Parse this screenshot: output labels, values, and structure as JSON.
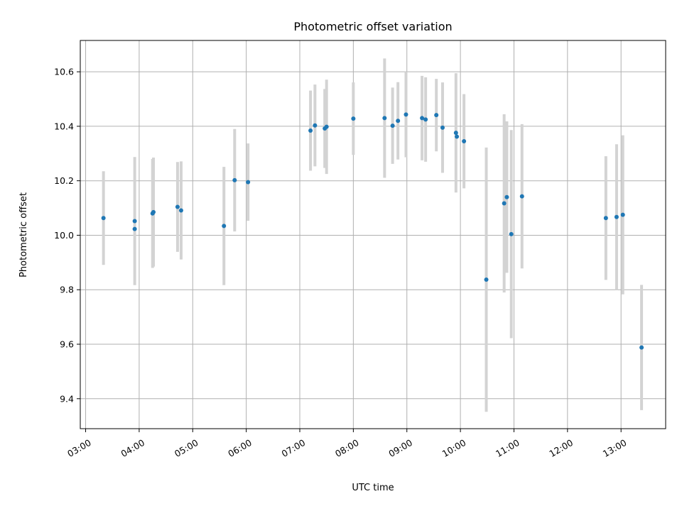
{
  "chart_data": {
    "type": "scatter",
    "title": "Photometric offset variation",
    "xlabel": "UTC time",
    "ylabel": "Photometric offset",
    "x_range": [
      "02:54",
      "13:50"
    ],
    "ylim": [
      9.29,
      10.715
    ],
    "x_ticks": [
      "03:00",
      "04:00",
      "05:00",
      "06:00",
      "07:00",
      "08:00",
      "09:00",
      "10:00",
      "11:00",
      "12:00",
      "13:00"
    ],
    "y_ticks": [
      9.4,
      9.6,
      9.8,
      10.0,
      10.2,
      10.4,
      10.6
    ],
    "y_tick_labels": [
      "9.4",
      "9.6",
      "9.8",
      "10.0",
      "10.2",
      "10.4",
      "10.6"
    ],
    "grid": true,
    "marker_color": "#1f77b4",
    "errorbar_color": "#d3d3d3",
    "points": [
      {
        "x": "03:20",
        "y": 10.063,
        "err": 0.172
      },
      {
        "x": "03:55",
        "y": 10.052,
        "err": 0.235
      },
      {
        "x": "03:55",
        "y": 10.023,
        "err": 0.0
      },
      {
        "x": "04:15",
        "y": 10.08,
        "err": 0.2
      },
      {
        "x": "04:16",
        "y": 10.085,
        "err": 0.2
      },
      {
        "x": "04:43",
        "y": 10.104,
        "err": 0.165
      },
      {
        "x": "04:47",
        "y": 10.091,
        "err": 0.18
      },
      {
        "x": "05:35",
        "y": 10.034,
        "err": 0.217
      },
      {
        "x": "05:47",
        "y": 10.202,
        "err": 0.188
      },
      {
        "x": "06:02",
        "y": 10.195,
        "err": 0.142
      },
      {
        "x": "07:12",
        "y": 10.384,
        "err": 0.147
      },
      {
        "x": "07:17",
        "y": 10.403,
        "err": 0.15
      },
      {
        "x": "07:28",
        "y": 10.392,
        "err": 0.145
      },
      {
        "x": "07:30",
        "y": 10.398,
        "err": 0.173
      },
      {
        "x": "08:00",
        "y": 10.428,
        "err": 0.133
      },
      {
        "x": "08:35",
        "y": 10.43,
        "err": 0.219
      },
      {
        "x": "08:44",
        "y": 10.402,
        "err": 0.14
      },
      {
        "x": "08:50",
        "y": 10.42,
        "err": 0.142
      },
      {
        "x": "08:59",
        "y": 10.443,
        "err": 0.157
      },
      {
        "x": "09:17",
        "y": 10.43,
        "err": 0.155
      },
      {
        "x": "09:21",
        "y": 10.425,
        "err": 0.155
      },
      {
        "x": "09:33",
        "y": 10.441,
        "err": 0.133
      },
      {
        "x": "09:40",
        "y": 10.395,
        "err": 0.166
      },
      {
        "x": "09:55",
        "y": 10.376,
        "err": 0.219
      },
      {
        "x": "09:56",
        "y": 10.362,
        "err": 0.0
      },
      {
        "x": "10:04",
        "y": 10.345,
        "err": 0.173
      },
      {
        "x": "10:29",
        "y": 9.837,
        "err": 0.485
      },
      {
        "x": "10:49",
        "y": 10.117,
        "err": 0.327
      },
      {
        "x": "10:52",
        "y": 10.14,
        "err": 0.278
      },
      {
        "x": "10:57",
        "y": 10.004,
        "err": 0.382
      },
      {
        "x": "11:09",
        "y": 10.143,
        "err": 0.265
      },
      {
        "x": "12:43",
        "y": 10.063,
        "err": 0.227
      },
      {
        "x": "12:55",
        "y": 10.067,
        "err": 0.267
      },
      {
        "x": "13:02",
        "y": 10.075,
        "err": 0.292
      },
      {
        "x": "13:23",
        "y": 9.588,
        "err": 0.23
      }
    ]
  }
}
